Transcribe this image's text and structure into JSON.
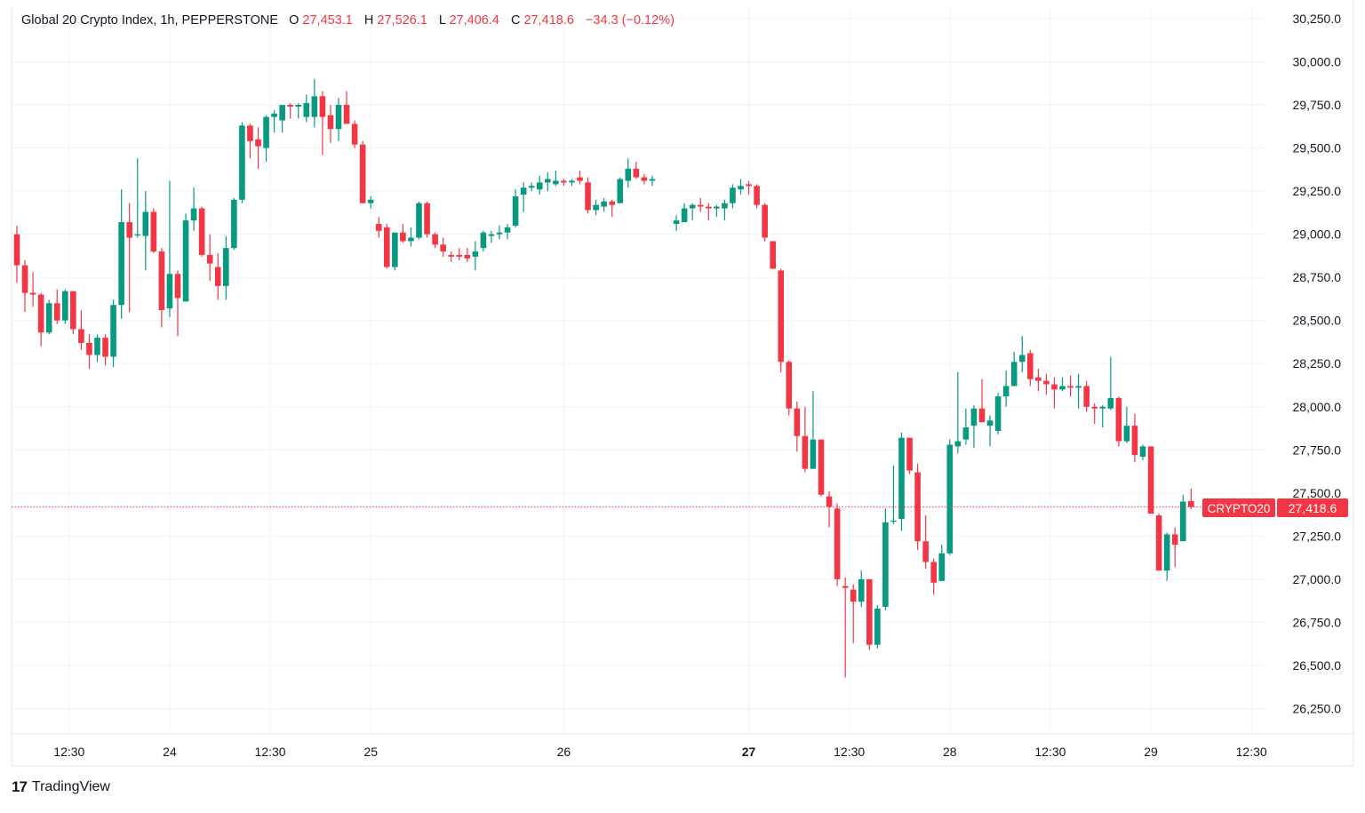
{
  "header": {
    "symbol": "Global 20 Crypto Index, 1h, PEPPERSTONE",
    "o_label": "O",
    "o_value": "27,453.1",
    "h_label": "H",
    "h_value": "27,526.1",
    "l_label": "L",
    "l_value": "27,406.4",
    "c_label": "C",
    "c_value": "27,418.6",
    "change": "−34.3 (−0.12%)"
  },
  "price_tag": {
    "ticker": "CRYPTO20",
    "price": "27,418.6"
  },
  "branding": {
    "logo": "17",
    "name": "TradingView"
  },
  "colors": {
    "up": "#089981",
    "down": "#f23645",
    "grid": "#f0f3fa",
    "text": "#131722",
    "border": "#e0e3eb"
  },
  "chart_data": {
    "type": "candlestick",
    "title": "Global 20 Crypto Index, 1h, PEPPERSTONE",
    "ylim": [
      26100,
      30300
    ],
    "y_ticks": [
      {
        "value": 30250,
        "label": "30,250.0"
      },
      {
        "value": 30000,
        "label": "30,000.0"
      },
      {
        "value": 29750,
        "label": "29,750.0"
      },
      {
        "value": 29500,
        "label": "29,500.0"
      },
      {
        "value": 29250,
        "label": "29,250.0"
      },
      {
        "value": 29000,
        "label": "29,000.0"
      },
      {
        "value": 28750,
        "label": "28,750.0"
      },
      {
        "value": 28500,
        "label": "28,500.0"
      },
      {
        "value": 28250,
        "label": "28,250.0"
      },
      {
        "value": 28000,
        "label": "28,000.0"
      },
      {
        "value": 27750,
        "label": "27,750.0"
      },
      {
        "value": 27500,
        "label": "27,500.0"
      },
      {
        "value": 27250,
        "label": "27,250.0"
      },
      {
        "value": 27000,
        "label": "27,000.0"
      },
      {
        "value": 26750,
        "label": "26,750.0"
      },
      {
        "value": 26500,
        "label": "26,500.0"
      },
      {
        "value": 26250,
        "label": "26,250.0"
      }
    ],
    "x_ticks": [
      {
        "index": 6.5,
        "label": "12:30",
        "bold": false
      },
      {
        "index": 19,
        "label": "24",
        "bold": false
      },
      {
        "index": 31.5,
        "label": "12:30",
        "bold": false
      },
      {
        "index": 44,
        "label": "25",
        "bold": false
      },
      {
        "index": 68,
        "label": "26",
        "bold": false
      },
      {
        "index": 91,
        "label": "27",
        "bold": true
      },
      {
        "index": 103.5,
        "label": "12:30",
        "bold": false
      },
      {
        "index": 116,
        "label": "28",
        "bold": false
      },
      {
        "index": 128.5,
        "label": "12:30",
        "bold": false
      },
      {
        "index": 141,
        "label": "29",
        "bold": false
      },
      {
        "index": 153.5,
        "label": "12:30",
        "bold": false
      }
    ],
    "last_price": 27418.6,
    "candles": [
      {
        "i": 0,
        "o": 29000,
        "h": 29050,
        "l": 28720,
        "c": 28820
      },
      {
        "i": 1,
        "o": 28820,
        "h": 28850,
        "l": 28550,
        "c": 28660
      },
      {
        "i": 2,
        "o": 28660,
        "h": 28780,
        "l": 28580,
        "c": 28650
      },
      {
        "i": 3,
        "o": 28650,
        "h": 28660,
        "l": 28350,
        "c": 28430
      },
      {
        "i": 4,
        "o": 28430,
        "h": 28620,
        "l": 28420,
        "c": 28600
      },
      {
        "i": 5,
        "o": 28600,
        "h": 28680,
        "l": 28480,
        "c": 28500
      },
      {
        "i": 6,
        "o": 28500,
        "h": 28680,
        "l": 28480,
        "c": 28670
      },
      {
        "i": 7,
        "o": 28670,
        "h": 28670,
        "l": 28420,
        "c": 28450
      },
      {
        "i": 8,
        "o": 28450,
        "h": 28560,
        "l": 28330,
        "c": 28370
      },
      {
        "i": 9,
        "o": 28370,
        "h": 28420,
        "l": 28220,
        "c": 28300
      },
      {
        "i": 10,
        "o": 28300,
        "h": 28420,
        "l": 28260,
        "c": 28400
      },
      {
        "i": 11,
        "o": 28400,
        "h": 28420,
        "l": 28240,
        "c": 28290
      },
      {
        "i": 12,
        "o": 28290,
        "h": 28620,
        "l": 28230,
        "c": 28590
      },
      {
        "i": 13,
        "o": 28590,
        "h": 29260,
        "l": 28510,
        "c": 29070
      },
      {
        "i": 14,
        "o": 29070,
        "h": 29180,
        "l": 28550,
        "c": 28980
      },
      {
        "i": 15,
        "o": 29000,
        "h": 29440,
        "l": 28980,
        "c": 29000
      },
      {
        "i": 16,
        "o": 28990,
        "h": 29250,
        "l": 28790,
        "c": 29130
      },
      {
        "i": 17,
        "o": 29130,
        "h": 29150,
        "l": 28890,
        "c": 28900
      },
      {
        "i": 18,
        "o": 28900,
        "h": 28920,
        "l": 28460,
        "c": 28560
      },
      {
        "i": 19,
        "o": 28570,
        "h": 29310,
        "l": 28520,
        "c": 28770
      },
      {
        "i": 20,
        "o": 28770,
        "h": 28790,
        "l": 28410,
        "c": 28630
      },
      {
        "i": 21,
        "o": 28610,
        "h": 29120,
        "l": 28610,
        "c": 29080
      },
      {
        "i": 22,
        "o": 29080,
        "h": 29270,
        "l": 29020,
        "c": 29150
      },
      {
        "i": 23,
        "o": 29150,
        "h": 29160,
        "l": 28870,
        "c": 28880
      },
      {
        "i": 24,
        "o": 28880,
        "h": 29000,
        "l": 28730,
        "c": 28830
      },
      {
        "i": 25,
        "o": 28810,
        "h": 28890,
        "l": 28620,
        "c": 28700
      },
      {
        "i": 26,
        "o": 28700,
        "h": 28990,
        "l": 28620,
        "c": 28920
      },
      {
        "i": 27,
        "o": 28920,
        "h": 29210,
        "l": 28910,
        "c": 29200
      },
      {
        "i": 28,
        "o": 29200,
        "h": 29650,
        "l": 29180,
        "c": 29630
      },
      {
        "i": 29,
        "o": 29630,
        "h": 29640,
        "l": 29440,
        "c": 29540
      },
      {
        "i": 30,
        "o": 29550,
        "h": 29620,
        "l": 29380,
        "c": 29510
      },
      {
        "i": 31,
        "o": 29500,
        "h": 29690,
        "l": 29420,
        "c": 29680
      },
      {
        "i": 32,
        "o": 29680,
        "h": 29720,
        "l": 29590,
        "c": 29700
      },
      {
        "i": 33,
        "o": 29660,
        "h": 29740,
        "l": 29590,
        "c": 29750
      },
      {
        "i": 34,
        "o": 29750,
        "h": 29760,
        "l": 29670,
        "c": 29740
      },
      {
        "i": 35,
        "o": 29740,
        "h": 29760,
        "l": 29670,
        "c": 29750
      },
      {
        "i": 36,
        "o": 29680,
        "h": 29810,
        "l": 29650,
        "c": 29760
      },
      {
        "i": 37,
        "o": 29680,
        "h": 29900,
        "l": 29620,
        "c": 29800
      },
      {
        "i": 38,
        "o": 29800,
        "h": 29830,
        "l": 29460,
        "c": 29680
      },
      {
        "i": 39,
        "o": 29690,
        "h": 29750,
        "l": 29530,
        "c": 29610
      },
      {
        "i": 40,
        "o": 29610,
        "h": 29790,
        "l": 29540,
        "c": 29750
      },
      {
        "i": 41,
        "o": 29750,
        "h": 29830,
        "l": 29640,
        "c": 29640
      },
      {
        "i": 42,
        "o": 29640,
        "h": 29660,
        "l": 29500,
        "c": 29520
      },
      {
        "i": 43,
        "o": 29520,
        "h": 29540,
        "l": 29180,
        "c": 29180
      },
      {
        "i": 44,
        "o": 29180,
        "h": 29220,
        "l": 29150,
        "c": 29200
      },
      {
        "i": 45,
        "o": 29060,
        "h": 29100,
        "l": 28980,
        "c": 29020
      },
      {
        "i": 46,
        "o": 29040,
        "h": 29060,
        "l": 28800,
        "c": 28810
      },
      {
        "i": 47,
        "o": 28810,
        "h": 29000,
        "l": 28790,
        "c": 29010
      },
      {
        "i": 48,
        "o": 29010,
        "h": 29060,
        "l": 28950,
        "c": 28960
      },
      {
        "i": 49,
        "o": 28960,
        "h": 29040,
        "l": 28930,
        "c": 28980
      },
      {
        "i": 50,
        "o": 28980,
        "h": 29190,
        "l": 28970,
        "c": 29180
      },
      {
        "i": 51,
        "o": 29180,
        "h": 29190,
        "l": 28980,
        "c": 29000
      },
      {
        "i": 52,
        "o": 29000,
        "h": 29010,
        "l": 28920,
        "c": 28940
      },
      {
        "i": 53,
        "o": 28940,
        "h": 28980,
        "l": 28870,
        "c": 28900
      },
      {
        "i": 54,
        "o": 28880,
        "h": 28900,
        "l": 28840,
        "c": 28870
      },
      {
        "i": 55,
        "o": 28880,
        "h": 28920,
        "l": 28850,
        "c": 28870
      },
      {
        "i": 56,
        "o": 28880,
        "h": 28920,
        "l": 28840,
        "c": 28860
      },
      {
        "i": 57,
        "o": 28870,
        "h": 28960,
        "l": 28790,
        "c": 28900
      },
      {
        "i": 58,
        "o": 28920,
        "h": 29020,
        "l": 28900,
        "c": 29010
      },
      {
        "i": 59,
        "o": 28990,
        "h": 29020,
        "l": 28950,
        "c": 29000
      },
      {
        "i": 60,
        "o": 29000,
        "h": 29050,
        "l": 28970,
        "c": 29010
      },
      {
        "i": 61,
        "o": 29010,
        "h": 29060,
        "l": 28970,
        "c": 29040
      },
      {
        "i": 62,
        "o": 29050,
        "h": 29260,
        "l": 29040,
        "c": 29220
      },
      {
        "i": 63,
        "o": 29230,
        "h": 29300,
        "l": 29130,
        "c": 29270
      },
      {
        "i": 64,
        "o": 29270,
        "h": 29300,
        "l": 29250,
        "c": 29280
      },
      {
        "i": 65,
        "o": 29260,
        "h": 29340,
        "l": 29230,
        "c": 29300
      },
      {
        "i": 66,
        "o": 29300,
        "h": 29360,
        "l": 29250,
        "c": 29320
      },
      {
        "i": 67,
        "o": 29290,
        "h": 29370,
        "l": 29280,
        "c": 29310
      },
      {
        "i": 68,
        "o": 29310,
        "h": 29320,
        "l": 29280,
        "c": 29300
      },
      {
        "i": 69,
        "o": 29300,
        "h": 29320,
        "l": 29280,
        "c": 29310
      },
      {
        "i": 70,
        "o": 29330,
        "h": 29370,
        "l": 29290,
        "c": 29310
      },
      {
        "i": 71,
        "o": 29300,
        "h": 29330,
        "l": 29120,
        "c": 29140
      },
      {
        "i": 72,
        "o": 29140,
        "h": 29200,
        "l": 29110,
        "c": 29170
      },
      {
        "i": 73,
        "o": 29160,
        "h": 29210,
        "l": 29130,
        "c": 29190
      },
      {
        "i": 74,
        "o": 29190,
        "h": 29200,
        "l": 29100,
        "c": 29170
      },
      {
        "i": 75,
        "o": 29180,
        "h": 29330,
        "l": 29180,
        "c": 29320
      },
      {
        "i": 76,
        "o": 29310,
        "h": 29440,
        "l": 29270,
        "c": 29380
      },
      {
        "i": 77,
        "o": 29380,
        "h": 29420,
        "l": 29320,
        "c": 29330
      },
      {
        "i": 78,
        "o": 29330,
        "h": 29350,
        "l": 29290,
        "c": 29310
      },
      {
        "i": 79,
        "o": 29310,
        "h": 29340,
        "l": 29280,
        "c": 29320
      },
      {
        "i": 82,
        "o": 29060,
        "h": 29110,
        "l": 29020,
        "c": 29080
      },
      {
        "i": 83,
        "o": 29070,
        "h": 29180,
        "l": 29070,
        "c": 29150
      },
      {
        "i": 84,
        "o": 29150,
        "h": 29180,
        "l": 29080,
        "c": 29170
      },
      {
        "i": 85,
        "o": 29170,
        "h": 29210,
        "l": 29130,
        "c": 29160
      },
      {
        "i": 86,
        "o": 29160,
        "h": 29180,
        "l": 29080,
        "c": 29150
      },
      {
        "i": 87,
        "o": 29150,
        "h": 29170,
        "l": 29100,
        "c": 29160
      },
      {
        "i": 88,
        "o": 29150,
        "h": 29200,
        "l": 29080,
        "c": 29180
      },
      {
        "i": 89,
        "o": 29180,
        "h": 29290,
        "l": 29150,
        "c": 29270
      },
      {
        "i": 90,
        "o": 29260,
        "h": 29320,
        "l": 29230,
        "c": 29280
      },
      {
        "i": 91,
        "o": 29290,
        "h": 29310,
        "l": 29230,
        "c": 29280
      },
      {
        "i": 92,
        "o": 29280,
        "h": 29290,
        "l": 29150,
        "c": 29170
      },
      {
        "i": 93,
        "o": 29170,
        "h": 29180,
        "l": 28960,
        "c": 28980
      },
      {
        "i": 94,
        "o": 28960,
        "h": 28960,
        "l": 28800,
        "c": 28800
      },
      {
        "i": 95,
        "o": 28790,
        "h": 28800,
        "l": 28200,
        "c": 28260
      },
      {
        "i": 96,
        "o": 28260,
        "h": 28270,
        "l": 27950,
        "c": 27990
      },
      {
        "i": 97,
        "o": 27990,
        "h": 28030,
        "l": 27740,
        "c": 27830
      },
      {
        "i": 98,
        "o": 27830,
        "h": 28000,
        "l": 27620,
        "c": 27640
      },
      {
        "i": 99,
        "o": 27640,
        "h": 28090,
        "l": 27640,
        "c": 27810
      },
      {
        "i": 100,
        "o": 27810,
        "h": 27810,
        "l": 27480,
        "c": 27490
      },
      {
        "i": 101,
        "o": 27480,
        "h": 27510,
        "l": 27300,
        "c": 27420
      },
      {
        "i": 102,
        "o": 27410,
        "h": 27440,
        "l": 26960,
        "c": 27000
      },
      {
        "i": 103,
        "o": 26960,
        "h": 27010,
        "l": 26430,
        "c": 26950
      },
      {
        "i": 104,
        "o": 26940,
        "h": 26970,
        "l": 26630,
        "c": 26870
      },
      {
        "i": 105,
        "o": 26870,
        "h": 27050,
        "l": 26840,
        "c": 27000
      },
      {
        "i": 106,
        "o": 27000,
        "h": 27000,
        "l": 26590,
        "c": 26620
      },
      {
        "i": 107,
        "o": 26620,
        "h": 26850,
        "l": 26600,
        "c": 26830
      },
      {
        "i": 108,
        "o": 26840,
        "h": 27410,
        "l": 26820,
        "c": 27330
      },
      {
        "i": 109,
        "o": 27340,
        "h": 27660,
        "l": 27320,
        "c": 27340
      },
      {
        "i": 110,
        "o": 27350,
        "h": 27850,
        "l": 27280,
        "c": 27820
      },
      {
        "i": 111,
        "o": 27820,
        "h": 27820,
        "l": 27610,
        "c": 27630
      },
      {
        "i": 112,
        "o": 27620,
        "h": 27670,
        "l": 27170,
        "c": 27220
      },
      {
        "i": 113,
        "o": 27220,
        "h": 27370,
        "l": 27060,
        "c": 27100
      },
      {
        "i": 114,
        "o": 27100,
        "h": 27120,
        "l": 26910,
        "c": 26980
      },
      {
        "i": 115,
        "o": 26990,
        "h": 27200,
        "l": 26990,
        "c": 27150
      },
      {
        "i": 116,
        "o": 27150,
        "h": 27810,
        "l": 27140,
        "c": 27780
      },
      {
        "i": 117,
        "o": 27770,
        "h": 28200,
        "l": 27730,
        "c": 27800
      },
      {
        "i": 118,
        "o": 27810,
        "h": 27990,
        "l": 27780,
        "c": 27880
      },
      {
        "i": 119,
        "o": 27890,
        "h": 28010,
        "l": 27760,
        "c": 27990
      },
      {
        "i": 120,
        "o": 27990,
        "h": 28160,
        "l": 27920,
        "c": 27910
      },
      {
        "i": 121,
        "o": 27890,
        "h": 27950,
        "l": 27770,
        "c": 27920
      },
      {
        "i": 122,
        "o": 27860,
        "h": 28080,
        "l": 27840,
        "c": 28060
      },
      {
        "i": 123,
        "o": 28060,
        "h": 28210,
        "l": 28000,
        "c": 28120
      },
      {
        "i": 124,
        "o": 28120,
        "h": 28320,
        "l": 28120,
        "c": 28260
      },
      {
        "i": 125,
        "o": 28260,
        "h": 28410,
        "l": 28200,
        "c": 28300
      },
      {
        "i": 126,
        "o": 28310,
        "h": 28330,
        "l": 28120,
        "c": 28160
      },
      {
        "i": 127,
        "o": 28170,
        "h": 28220,
        "l": 28090,
        "c": 28150
      },
      {
        "i": 128,
        "o": 28150,
        "h": 28190,
        "l": 28070,
        "c": 28130
      },
      {
        "i": 129,
        "o": 28130,
        "h": 28170,
        "l": 27990,
        "c": 28100
      },
      {
        "i": 130,
        "o": 28100,
        "h": 28170,
        "l": 28090,
        "c": 28120
      },
      {
        "i": 131,
        "o": 28120,
        "h": 28180,
        "l": 28060,
        "c": 28110
      },
      {
        "i": 132,
        "o": 28110,
        "h": 28190,
        "l": 27990,
        "c": 28120
      },
      {
        "i": 133,
        "o": 28120,
        "h": 28150,
        "l": 27970,
        "c": 28000
      },
      {
        "i": 134,
        "o": 28000,
        "h": 28020,
        "l": 27900,
        "c": 27990
      },
      {
        "i": 135,
        "o": 27990,
        "h": 28010,
        "l": 27880,
        "c": 28000
      },
      {
        "i": 136,
        "o": 27990,
        "h": 28290,
        "l": 27980,
        "c": 28050
      },
      {
        "i": 137,
        "o": 28050,
        "h": 28060,
        "l": 27770,
        "c": 27800
      },
      {
        "i": 138,
        "o": 27800,
        "h": 28000,
        "l": 27790,
        "c": 27890
      },
      {
        "i": 139,
        "o": 27890,
        "h": 27960,
        "l": 27680,
        "c": 27720
      },
      {
        "i": 140,
        "o": 27710,
        "h": 27780,
        "l": 27690,
        "c": 27770
      },
      {
        "i": 141,
        "o": 27770,
        "h": 27770,
        "l": 27410,
        "c": 27380
      },
      {
        "i": 142,
        "o": 27370,
        "h": 27380,
        "l": 27060,
        "c": 27050
      },
      {
        "i": 143,
        "o": 27050,
        "h": 27270,
        "l": 26990,
        "c": 27260
      },
      {
        "i": 144,
        "o": 27260,
        "h": 27300,
        "l": 27070,
        "c": 27200
      },
      {
        "i": 145,
        "o": 27220,
        "h": 27490,
        "l": 27230,
        "c": 27450
      },
      {
        "i": 146,
        "o": 27453.1,
        "h": 27526.1,
        "l": 27406.4,
        "c": 27418.6
      }
    ]
  }
}
